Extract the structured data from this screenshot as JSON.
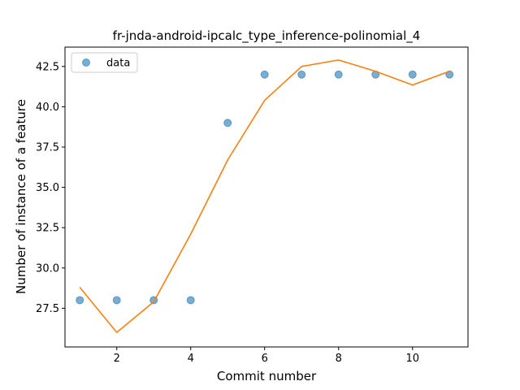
{
  "chart_data": {
    "type": "scatter",
    "title": "fr-jnda-android-ipcalc_type_inference-polinomial_4",
    "xlabel": "Commit number",
    "ylabel": "Number of instance of a feature",
    "xlim": [
      0.6,
      11.5
    ],
    "ylim": [
      25.1,
      43.7
    ],
    "xticks": [
      2,
      4,
      6,
      8,
      10
    ],
    "yticks": [
      27.5,
      30.0,
      32.5,
      35.0,
      37.5,
      40.0,
      42.5
    ],
    "xtick_labels": [
      "2",
      "4",
      "6",
      "8",
      "10"
    ],
    "ytick_labels": [
      "27.5",
      "30.0",
      "32.5",
      "35.0",
      "37.5",
      "40.0",
      "42.5"
    ],
    "grid": false,
    "legend": {
      "position": "top-left",
      "entries": [
        {
          "label": "data",
          "marker": "circle",
          "color": "#1f77b4"
        }
      ]
    },
    "series": [
      {
        "name": "data",
        "kind": "scatter",
        "color": "#1f77b4",
        "x": [
          1,
          2,
          3,
          4,
          5,
          6,
          7,
          8,
          9,
          10,
          11
        ],
        "y": [
          28,
          28,
          28,
          28,
          39,
          42,
          42,
          42,
          42,
          42,
          42
        ]
      },
      {
        "kind": "line",
        "color": "#ff7f0e",
        "x": [
          1,
          2,
          3,
          4,
          5,
          6,
          7,
          8,
          9,
          10,
          11
        ],
        "y": [
          28.8,
          26.0,
          27.9,
          32.1,
          36.7,
          40.4,
          42.5,
          42.9,
          42.2,
          41.35,
          42.2
        ]
      }
    ]
  }
}
